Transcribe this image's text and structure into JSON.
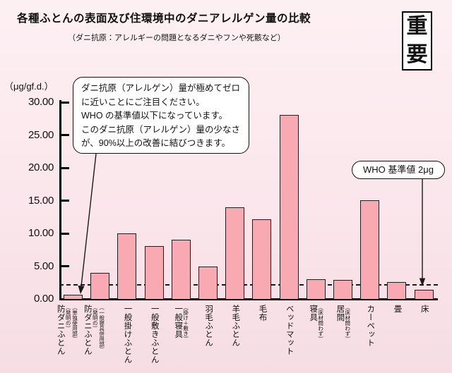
{
  "header": {
    "title": "各種ふとんの表面及び住環境中のダニアレルゲン量の比較",
    "subtitle": "（ダニ抗原：アレルギーの問題となるダニやフンや死骸など）",
    "stamp": [
      "重",
      "要"
    ]
  },
  "callout": {
    "lines": [
      "ダニ抗原（アレルゲン）量が極めてゼロ",
      "に近いことにご注目ください。",
      "WHO の基準値以下になっています。",
      "このダニ抗原（アレルゲン）量の少なさ",
      "が、90%以上の改善に結びつきます。"
    ]
  },
  "chart_data": {
    "type": "bar",
    "title": "各種ふとんの表面及び住環境中のダニアレルゲン量の比較",
    "unit_label": "（μg/gf.d.）",
    "ylim": [
      0,
      30
    ],
    "yticks": [
      0,
      5,
      10,
      15,
      20,
      25,
      30
    ],
    "ytick_labels": [
      "0.00",
      "5.00",
      "10.00",
      "15.00",
      "20.00",
      "25.00",
      "30.00"
    ],
    "grid": false,
    "reference_line": {
      "value": 2,
      "label": "WHO 基準値 2μg"
    },
    "bars": [
      {
        "label": "防ダニふとん",
        "annotations": [
          "（発明の）",
          "（単独使用部）"
        ],
        "value": 0.6
      },
      {
        "label": "防ダニふとん",
        "annotations": [
          "（発明の）",
          "（一般寝具併用部）"
        ],
        "value": 4.0
      },
      {
        "label": "一般掛けふとん",
        "annotations": [],
        "value": 10.0
      },
      {
        "label": "一般敷きふとん",
        "annotations": [],
        "value": 8.1
      },
      {
        "label": "一般寝具",
        "annotations": [
          "（掛け＋敷き）"
        ],
        "value": 9.0
      },
      {
        "label": "羽毛ふとん",
        "annotations": [],
        "value": 5.0
      },
      {
        "label": "羊毛ふとん",
        "annotations": [],
        "value": 14.0
      },
      {
        "label": "毛布",
        "annotations": [],
        "value": 12.1
      },
      {
        "label": "ベッドマット",
        "annotations": [],
        "value": 28.1
      },
      {
        "label": "寝具",
        "annotations": [
          "（床材問わず）"
        ],
        "value": 3.0
      },
      {
        "label": "居間",
        "annotations": [
          "（床材問わず）"
        ],
        "value": 2.9
      },
      {
        "label": "カーペット",
        "annotations": [],
        "value": 15.1
      },
      {
        "label": "畳",
        "annotations": [],
        "value": 2.6
      },
      {
        "label": "床",
        "annotations": [],
        "value": 1.4
      }
    ],
    "colors": {
      "bar_fill": "#f9a9b1",
      "bar_border": "#1f1f1f",
      "axis": "#000000",
      "background_top": "#fdf0f3",
      "background_bottom": "#f6dde4",
      "callout_background": "#ffffff"
    }
  }
}
